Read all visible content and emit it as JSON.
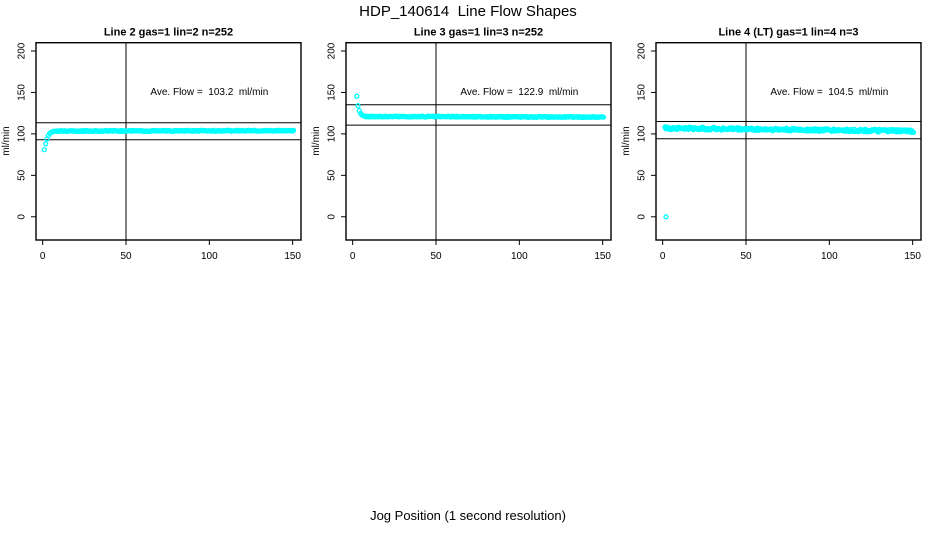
{
  "figure": {
    "title": "HDP_140614  Line Flow Shapes",
    "xlabel": "Jog Position (1 second resolution)"
  },
  "colors": {
    "points": "#00ffff",
    "axis": "#000000",
    "background": "#ffffff"
  },
  "chart_data": [
    {
      "type": "scatter",
      "title": "Line 2 gas=1 lin=2 n=252",
      "line_name": "Line 2",
      "gas": 1,
      "lin": 2,
      "n": 252,
      "annotation": "Ave. Flow =  103.2  ml/min",
      "ave_flow_ml_min": 103.2,
      "ylabel": "ml/min",
      "xticks": [
        0,
        50,
        100,
        150
      ],
      "yticks": [
        0,
        50,
        100,
        150,
        200
      ],
      "xlim": [
        -4,
        155
      ],
      "ylim": [
        -28,
        210
      ],
      "grid": false,
      "vline_x": 50,
      "hlines": [
        113.5,
        92.9
      ],
      "lead_points": [
        [
          1,
          81
        ],
        [
          1.8,
          88
        ],
        [
          2.6,
          94
        ],
        [
          3.4,
          98
        ],
        [
          4.2,
          100.5
        ],
        [
          5,
          101.8
        ],
        [
          6,
          102.7
        ],
        [
          7,
          103.2
        ]
      ],
      "band": {
        "x_start": 8,
        "x_end": 150.5,
        "n": 244,
        "y_start": 103.4,
        "y_end": 103.9,
        "jitter": 0.55
      },
      "outlier_points": []
    },
    {
      "type": "scatter",
      "title": "Line 3 gas=1 lin=3 n=252",
      "line_name": "Line 3",
      "gas": 1,
      "lin": 3,
      "n": 252,
      "annotation": "Ave. Flow =  122.9  ml/min",
      "ave_flow_ml_min": 122.9,
      "ylabel": "ml/min",
      "xticks": [
        0,
        50,
        100,
        150
      ],
      "yticks": [
        0,
        50,
        100,
        150,
        200
      ],
      "xlim": [
        -4,
        155
      ],
      "ylim": [
        -28,
        210
      ],
      "grid": false,
      "vline_x": 50,
      "hlines": [
        135.2,
        110.6
      ],
      "lead_points": [
        [
          2.5,
          145.5
        ],
        [
          3.2,
          134
        ],
        [
          4,
          128
        ],
        [
          4.8,
          124.5
        ],
        [
          5.6,
          122.8
        ],
        [
          6.4,
          121.8
        ],
        [
          7.2,
          121.3
        ]
      ],
      "band": {
        "x_start": 8,
        "x_end": 150.5,
        "n": 244,
        "y_start": 121.0,
        "y_end": 120.3,
        "jitter": 0.55
      },
      "outlier_points": []
    },
    {
      "type": "scatter",
      "title": "Line 4 (LT) gas=1 lin=4 n=3",
      "line_name": "Line 4 (LT)",
      "gas": 1,
      "lin": 4,
      "n": 3,
      "annotation": "Ave. Flow =  104.5  ml/min",
      "ave_flow_ml_min": 104.5,
      "ylabel": "ml/min",
      "xticks": [
        0,
        50,
        100,
        150
      ],
      "yticks": [
        0,
        50,
        100,
        150,
        200
      ],
      "xlim": [
        -4,
        155
      ],
      "ylim": [
        -28,
        210
      ],
      "grid": false,
      "vline_x": 50,
      "hlines": [
        115.0,
        94.1
      ],
      "lead_points": [
        [
          1.5,
          107.6
        ],
        [
          2.3,
          107.2
        ]
      ],
      "band": {
        "x_start": 1.5,
        "x_end": 150.5,
        "n": 300,
        "y_start": 107.0,
        "y_end": 103.4,
        "jitter": 1.6
      },
      "outlier_points": [
        [
          2,
          0
        ]
      ]
    }
  ]
}
